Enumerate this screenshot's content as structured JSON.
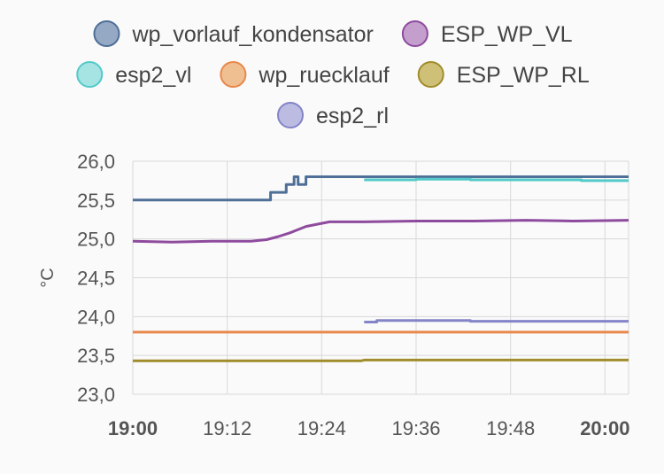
{
  "chart_data": {
    "type": "line",
    "ylabel": "°C",
    "ylim": [
      23.0,
      26.0
    ],
    "yticks": [
      "26,0",
      "25,5",
      "25,0",
      "24,5",
      "24,0",
      "23,5",
      "23,0"
    ],
    "ytick_values": [
      26.0,
      25.5,
      25.0,
      24.5,
      24.0,
      23.5,
      23.0
    ],
    "xlim_minutes": [
      0,
      63
    ],
    "xticks": [
      {
        "label": "19:00",
        "minute": 0,
        "bold": true
      },
      {
        "label": "19:12",
        "minute": 12,
        "bold": false
      },
      {
        "label": "19:24",
        "minute": 24,
        "bold": false
      },
      {
        "label": "19:36",
        "minute": 36,
        "bold": false
      },
      {
        "label": "19:48",
        "minute": 48,
        "bold": false
      },
      {
        "label": "20:00",
        "minute": 60,
        "bold": true
      }
    ],
    "grid": true,
    "legend_position": "top",
    "series": [
      {
        "name": "wp_vorlauf_kondensator",
        "color": "#4e6f97",
        "fill": "#95a9c4",
        "step": true,
        "points": [
          [
            0,
            25.5
          ],
          [
            17.5,
            25.5
          ],
          [
            17.5,
            25.6
          ],
          [
            19.5,
            25.6
          ],
          [
            19.5,
            25.7
          ],
          [
            20.5,
            25.7
          ],
          [
            20.5,
            25.8
          ],
          [
            21.0,
            25.8
          ],
          [
            21.0,
            25.7
          ],
          [
            22.0,
            25.7
          ],
          [
            22.0,
            25.8
          ],
          [
            29.0,
            25.8
          ],
          [
            29.4,
            25.8
          ],
          [
            43.0,
            25.8
          ],
          [
            43.4,
            25.8
          ],
          [
            63,
            25.8
          ]
        ]
      },
      {
        "name": "ESP_WP_VL",
        "color": "#8e4b9e",
        "fill": "#c49fcd",
        "step": false,
        "points": [
          [
            0,
            24.97
          ],
          [
            5,
            24.96
          ],
          [
            10,
            24.97
          ],
          [
            15,
            24.97
          ],
          [
            17,
            24.99
          ],
          [
            18.5,
            25.03
          ],
          [
            20,
            25.08
          ],
          [
            21,
            25.12
          ],
          [
            22,
            25.16
          ],
          [
            23,
            25.18
          ],
          [
            24,
            25.2
          ],
          [
            25,
            25.22
          ],
          [
            29,
            25.22
          ],
          [
            29.4,
            25.22
          ],
          [
            36,
            25.23
          ],
          [
            43,
            25.23
          ],
          [
            43.4,
            25.23
          ],
          [
            50,
            25.24
          ],
          [
            56,
            25.23
          ],
          [
            63,
            25.24
          ]
        ]
      },
      {
        "name": "esp2_vl",
        "color": "#54c9c9",
        "fill": "#a6e4e4",
        "step": true,
        "points": [
          [
            29.4,
            25.76
          ],
          [
            36,
            25.77
          ],
          [
            42.9,
            25.76
          ],
          [
            43.4,
            25.76
          ],
          [
            50,
            25.76
          ],
          [
            57,
            25.75
          ],
          [
            63,
            25.75
          ]
        ]
      },
      {
        "name": "wp_ruecklauf",
        "color": "#e8884a",
        "fill": "#f0bf91",
        "step": true,
        "points": [
          [
            0,
            23.8
          ],
          [
            29.0,
            23.8
          ],
          [
            29.4,
            23.8
          ],
          [
            43.0,
            23.8
          ],
          [
            43.4,
            23.8
          ],
          [
            63,
            23.8
          ]
        ]
      },
      {
        "name": "ESP_WP_RL",
        "color": "#a08c2a",
        "fill": "#cfc078",
        "step": false,
        "points": [
          [
            0,
            23.43
          ],
          [
            10,
            23.43
          ],
          [
            20,
            23.43
          ],
          [
            29,
            23.43
          ],
          [
            29.4,
            23.44
          ],
          [
            36,
            23.44
          ],
          [
            43,
            23.44
          ],
          [
            43.4,
            23.44
          ],
          [
            50,
            23.44
          ],
          [
            63,
            23.44
          ]
        ]
      },
      {
        "name": "esp2_rl",
        "color": "#8484c8",
        "fill": "#bcbce3",
        "step": true,
        "points": [
          [
            29.4,
            23.93
          ],
          [
            31,
            23.95
          ],
          [
            36,
            23.95
          ],
          [
            42.9,
            23.94
          ],
          [
            43.4,
            23.94
          ],
          [
            50,
            23.94
          ],
          [
            57,
            23.94
          ],
          [
            63,
            23.94
          ]
        ]
      }
    ]
  }
}
